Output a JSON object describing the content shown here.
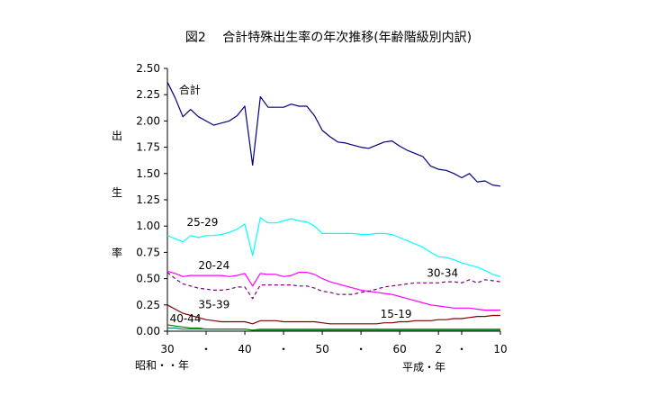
{
  "chart_data": {
    "type": "line",
    "title": "図2　 合計特殊出生率の年次推移(年齢階級別内訳)",
    "ylabel": [
      "出",
      "生",
      "率"
    ],
    "ylim": [
      0,
      2.5
    ],
    "yticks": [
      "0.00",
      "0.25",
      "0.50",
      "0.75",
      "1.00",
      "1.25",
      "1.50",
      "1.75",
      "2.00",
      "2.25",
      "2.50"
    ],
    "xlim": [
      1955,
      1998
    ],
    "xticks": [
      {
        "year": 1955,
        "label": "30"
      },
      {
        "year": 1960,
        "label": "・"
      },
      {
        "year": 1965,
        "label": "40"
      },
      {
        "year": 1970,
        "label": "・"
      },
      {
        "year": 1975,
        "label": "50"
      },
      {
        "year": 1980,
        "label": "・"
      },
      {
        "year": 1985,
        "label": "60"
      },
      {
        "year": 1990,
        "label": "2"
      },
      {
        "year": 1993,
        "label": "・"
      },
      {
        "year": 1998,
        "label": "10"
      }
    ],
    "era_labels": {
      "showa": "昭和・・年",
      "heisei": "平成・年"
    },
    "grid": false,
    "legend": "inline-labels",
    "x": [
      1955,
      1956,
      1957,
      1958,
      1959,
      1960,
      1961,
      1962,
      1963,
      1964,
      1965,
      1966,
      1967,
      1968,
      1969,
      1970,
      1971,
      1972,
      1973,
      1974,
      1975,
      1976,
      1977,
      1978,
      1979,
      1980,
      1981,
      1982,
      1983,
      1984,
      1985,
      1986,
      1987,
      1988,
      1989,
      1990,
      1991,
      1992,
      1993,
      1994,
      1995,
      1996,
      1997,
      1998
    ],
    "series": [
      {
        "name": "合計",
        "color": "#000080",
        "dash": false,
        "values": [
          2.37,
          2.22,
          2.04,
          2.11,
          2.04,
          2.0,
          1.96,
          1.98,
          2.0,
          2.05,
          2.14,
          1.58,
          2.23,
          2.13,
          2.13,
          2.13,
          2.16,
          2.14,
          2.14,
          2.05,
          1.91,
          1.85,
          1.8,
          1.79,
          1.77,
          1.75,
          1.74,
          1.77,
          1.8,
          1.81,
          1.76,
          1.72,
          1.69,
          1.66,
          1.57,
          1.54,
          1.53,
          1.5,
          1.46,
          1.5,
          1.42,
          1.43,
          1.39,
          1.38
        ]
      },
      {
        "name": "25-29",
        "color": "#00ffff",
        "dash": false,
        "values": [
          0.91,
          0.88,
          0.85,
          0.91,
          0.89,
          0.91,
          0.91,
          0.92,
          0.94,
          0.97,
          1.02,
          0.72,
          1.08,
          1.03,
          1.03,
          1.05,
          1.07,
          1.05,
          1.04,
          1.0,
          0.93,
          0.93,
          0.93,
          0.93,
          0.93,
          0.92,
          0.92,
          0.93,
          0.93,
          0.92,
          0.89,
          0.86,
          0.83,
          0.8,
          0.75,
          0.71,
          0.7,
          0.68,
          0.65,
          0.63,
          0.61,
          0.58,
          0.54,
          0.52
        ]
      },
      {
        "name": "20-24",
        "color": "#ff00ff",
        "dash": false,
        "values": [
          0.57,
          0.55,
          0.52,
          0.53,
          0.53,
          0.53,
          0.53,
          0.53,
          0.52,
          0.53,
          0.55,
          0.43,
          0.55,
          0.54,
          0.54,
          0.52,
          0.53,
          0.56,
          0.56,
          0.54,
          0.5,
          0.47,
          0.45,
          0.43,
          0.41,
          0.39,
          0.38,
          0.37,
          0.36,
          0.35,
          0.33,
          0.31,
          0.29,
          0.27,
          0.25,
          0.24,
          0.23,
          0.22,
          0.22,
          0.22,
          0.21,
          0.2,
          0.2,
          0.2
        ]
      },
      {
        "name": "30-34",
        "color": "#800080",
        "dash": true,
        "values": [
          0.56,
          0.5,
          0.45,
          0.43,
          0.41,
          0.4,
          0.39,
          0.39,
          0.4,
          0.42,
          0.42,
          0.31,
          0.44,
          0.44,
          0.44,
          0.44,
          0.44,
          0.43,
          0.43,
          0.41,
          0.38,
          0.37,
          0.35,
          0.35,
          0.35,
          0.37,
          0.38,
          0.4,
          0.42,
          0.43,
          0.44,
          0.45,
          0.46,
          0.46,
          0.46,
          0.46,
          0.47,
          0.47,
          0.46,
          0.49,
          0.46,
          0.49,
          0.48,
          0.47
        ]
      },
      {
        "name": "35-39",
        "color": "#800000",
        "dash": false,
        "values": [
          0.25,
          0.21,
          0.17,
          0.15,
          0.13,
          0.11,
          0.1,
          0.09,
          0.09,
          0.09,
          0.09,
          0.07,
          0.1,
          0.1,
          0.1,
          0.09,
          0.09,
          0.09,
          0.09,
          0.09,
          0.08,
          0.07,
          0.07,
          0.07,
          0.07,
          0.07,
          0.07,
          0.07,
          0.08,
          0.08,
          0.09,
          0.09,
          0.1,
          0.1,
          0.1,
          0.11,
          0.11,
          0.12,
          0.12,
          0.13,
          0.14,
          0.14,
          0.15,
          0.15
        ]
      },
      {
        "name": "15-19",
        "color": "#008080",
        "dash": false,
        "values": [
          0.03,
          0.03,
          0.02,
          0.02,
          0.02,
          0.02,
          0.02,
          0.02,
          0.02,
          0.02,
          0.02,
          0.01,
          0.02,
          0.02,
          0.02,
          0.02,
          0.02,
          0.02,
          0.02,
          0.02,
          0.02,
          0.02,
          0.02,
          0.02,
          0.02,
          0.02,
          0.02,
          0.02,
          0.02,
          0.02,
          0.02,
          0.02,
          0.02,
          0.02,
          0.02,
          0.02,
          0.02,
          0.02,
          0.02,
          0.02,
          0.02,
          0.02,
          0.02,
          0.02
        ]
      },
      {
        "name": "40-44",
        "color": "#008000",
        "dash": false,
        "values": [
          0.06,
          0.05,
          0.04,
          0.03,
          0.03,
          0.02,
          0.02,
          0.02,
          0.02,
          0.02,
          0.02,
          0.01,
          0.01,
          0.01,
          0.01,
          0.01,
          0.01,
          0.01,
          0.01,
          0.01,
          0.01,
          0.01,
          0.01,
          0.01,
          0.01,
          0.01,
          0.01,
          0.01,
          0.01,
          0.01,
          0.01,
          0.01,
          0.01,
          0.01,
          0.01,
          0.01,
          0.01,
          0.01,
          0.01,
          0.01,
          0.01,
          0.01,
          0.01,
          0.01
        ]
      }
    ],
    "annotations": [
      {
        "series": "合計",
        "text": "合計",
        "year": 1956.5,
        "value": 2.26
      },
      {
        "series": "25-29",
        "text": "25-29",
        "year": 1957.5,
        "value": 1.0
      },
      {
        "series": "20-24",
        "text": "20-24",
        "year": 1959,
        "value": 0.59
      },
      {
        "series": "30-34",
        "text": "30-34",
        "year": 1988.5,
        "value": 0.52
      },
      {
        "series": "35-39",
        "text": "35-39",
        "year": 1959,
        "value": 0.22
      },
      {
        "series": "15-19",
        "text": "15-19",
        "year": 1982.5,
        "value": 0.13
      },
      {
        "series": "40-44",
        "text": "40-44",
        "year": 1955.3,
        "value": 0.085
      }
    ]
  }
}
